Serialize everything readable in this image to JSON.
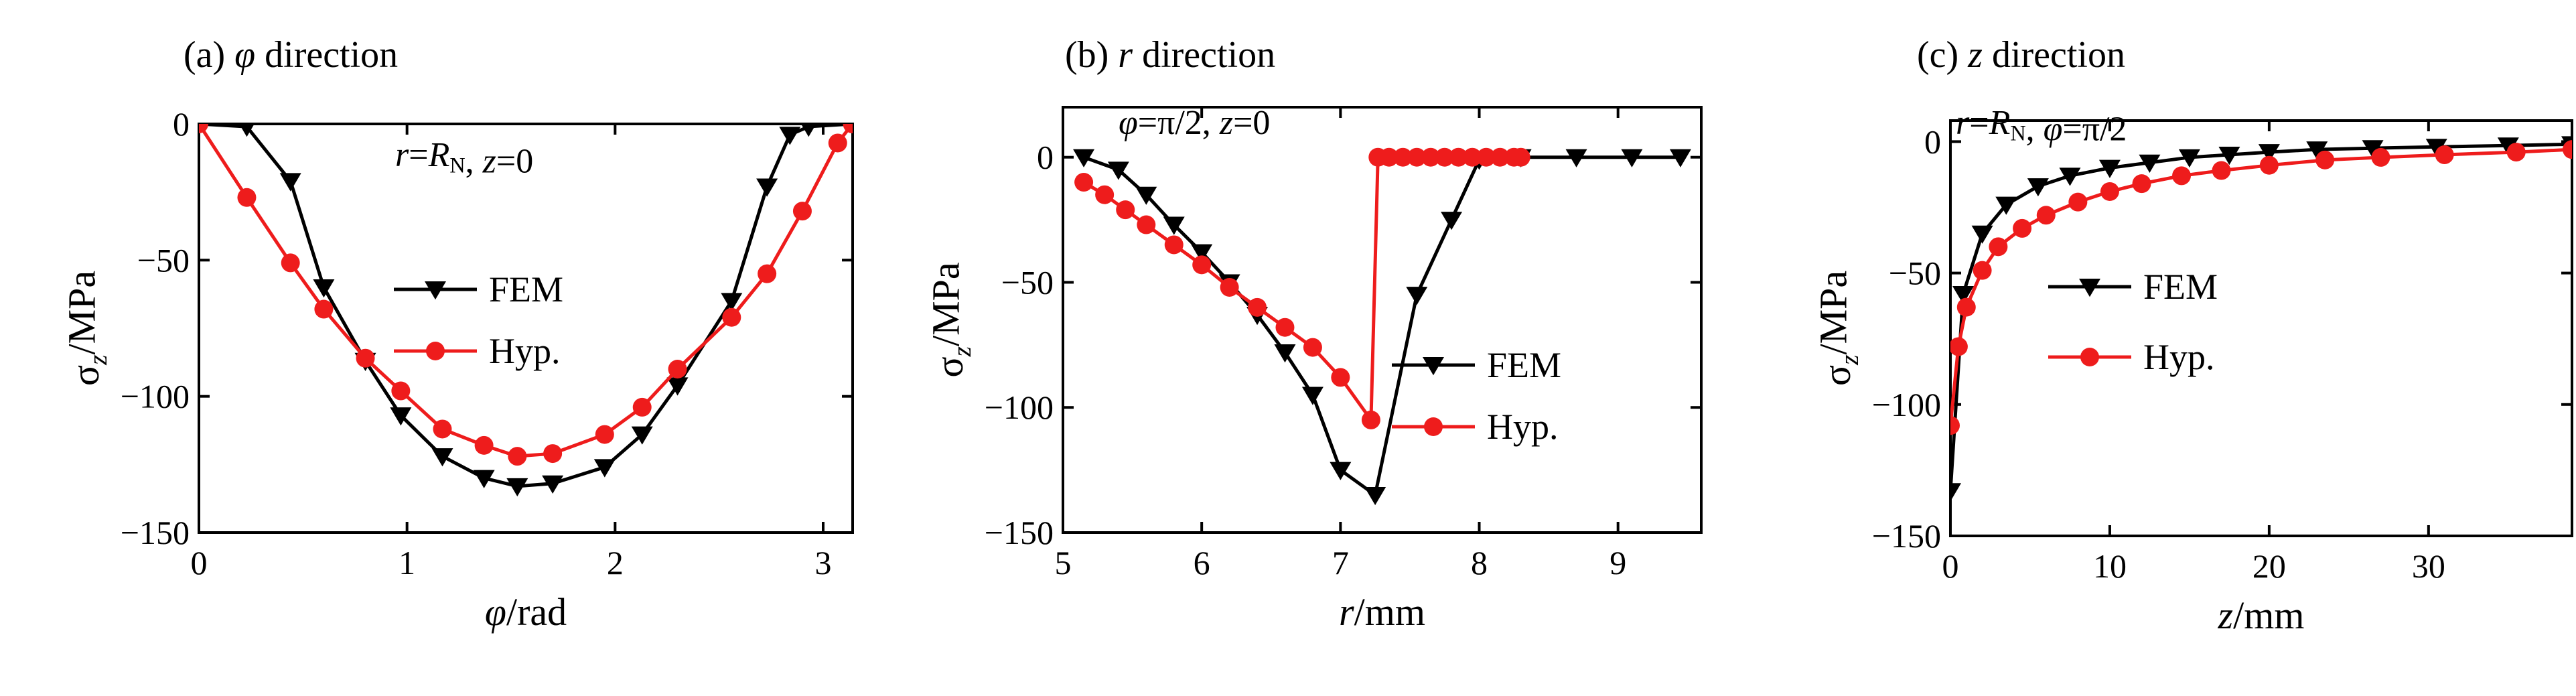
{
  "chart_data": [
    {
      "type": "line",
      "panel_label": "(a) φ direction",
      "condition": "r=R_N, z=0",
      "xlabel": "φ/rad",
      "ylabel": "σ_z/MPa",
      "xlim": [
        0,
        3.14159
      ],
      "ylim": [
        -150,
        0
      ],
      "xticks": [
        0,
        1,
        2,
        3
      ],
      "yticks": [
        0,
        -50,
        -100,
        -150
      ],
      "legend_placement": "center",
      "series": [
        {
          "name": "FEM",
          "marker": "triangle-down",
          "color": "#000000",
          "x": [
            0.0,
            0.23,
            0.44,
            0.6,
            0.8,
            0.97,
            1.17,
            1.37,
            1.53,
            1.7,
            1.95,
            2.13,
            2.3,
            2.56,
            2.73,
            2.84,
            2.93,
            3.14
          ],
          "y": [
            0,
            -1,
            -21,
            -60,
            -87,
            -107,
            -122,
            -130,
            -133,
            -132,
            -126,
            -114,
            -96,
            -65,
            -23,
            -4,
            -1,
            0
          ]
        },
        {
          "name": "Hyp.",
          "marker": "circle",
          "color": "#ee1c1c",
          "x": [
            0.0,
            0.23,
            0.44,
            0.6,
            0.8,
            0.97,
            1.17,
            1.37,
            1.53,
            1.7,
            1.95,
            2.13,
            2.3,
            2.56,
            2.73,
            2.9,
            3.07,
            3.14
          ],
          "y": [
            0,
            -27,
            -51,
            -68,
            -86,
            -98,
            -112,
            -118,
            -122,
            -121,
            -114,
            -104,
            -90,
            -71,
            -55,
            -32,
            -7,
            0
          ]
        }
      ]
    },
    {
      "type": "line",
      "panel_label": "(b) r direction",
      "condition": "φ=π/2, z=0",
      "xlabel": "r/mm",
      "ylabel": "σ_z/MPa",
      "xlim": [
        5,
        9.6
      ],
      "ylim": [
        -150,
        20
      ],
      "xticks": [
        5,
        6,
        7,
        8,
        9
      ],
      "yticks": [
        0,
        -50,
        -100,
        -150
      ],
      "legend_placement": "center-right",
      "series": [
        {
          "name": "FEM",
          "marker": "triangle-down",
          "color": "#000000",
          "x": [
            5.15,
            5.4,
            5.6,
            5.8,
            6.0,
            6.2,
            6.4,
            6.6,
            6.8,
            7.0,
            7.25,
            7.55,
            7.8,
            8.0,
            8.3,
            8.7,
            9.1,
            9.45
          ],
          "y": [
            0,
            -5,
            -15,
            -27,
            -38,
            -50,
            -63,
            -78,
            -95,
            -125,
            -135,
            -55,
            -25,
            -1,
            0,
            0,
            0,
            0
          ]
        },
        {
          "name": "Hyp.",
          "marker": "circle",
          "color": "#ee1c1c",
          "x": [
            5.15,
            5.3,
            5.45,
            5.6,
            5.8,
            6.0,
            6.2,
            6.4,
            6.6,
            6.8,
            7.0,
            7.22,
            7.27,
            7.35,
            7.45,
            7.55,
            7.65,
            7.75,
            7.85,
            7.95,
            8.05,
            8.15,
            8.25,
            8.3
          ],
          "y": [
            -10,
            -15,
            -21,
            -27,
            -35,
            -43,
            -52,
            -60,
            -68,
            -76,
            -88,
            -105,
            0,
            0,
            0,
            0,
            0,
            0,
            0,
            0,
            0,
            0,
            0,
            0
          ]
        }
      ]
    },
    {
      "type": "line",
      "panel_label": "(c) z direction",
      "condition": "r=R_N, φ=π/2",
      "xlabel": "z/mm",
      "ylabel": "σ_z/MPa",
      "xlim": [
        0,
        39
      ],
      "ylim": [
        -150,
        8
      ],
      "xticks": [
        0,
        10,
        20,
        30
      ],
      "yticks": [
        0,
        -50,
        -100,
        -150
      ],
      "legend_placement": "center-left",
      "series": [
        {
          "name": "FEM",
          "marker": "triangle-down",
          "color": "#000000",
          "x": [
            0,
            0.8,
            2,
            3.5,
            5.5,
            7.5,
            10,
            12.5,
            15,
            17.5,
            20,
            23,
            26.5,
            30.5,
            35,
            39
          ],
          "y": [
            -133,
            -58,
            -35,
            -24,
            -17,
            -13,
            -10,
            -8,
            -6,
            -5,
            -4,
            -3,
            -2.5,
            -2,
            -1.5,
            -1
          ]
        },
        {
          "name": "Hyp.",
          "marker": "circle",
          "color": "#ee1c1c",
          "x": [
            0,
            0.5,
            1,
            2,
            3,
            4.5,
            6,
            8,
            10,
            12,
            14.5,
            17,
            20,
            23.5,
            27,
            31,
            35.5,
            39
          ],
          "y": [
            -108,
            -78,
            -63,
            -49,
            -40,
            -33,
            -28,
            -23,
            -19,
            -16,
            -13,
            -11,
            -9,
            -7,
            -6,
            -5,
            -4,
            -3
          ]
        }
      ]
    }
  ]
}
